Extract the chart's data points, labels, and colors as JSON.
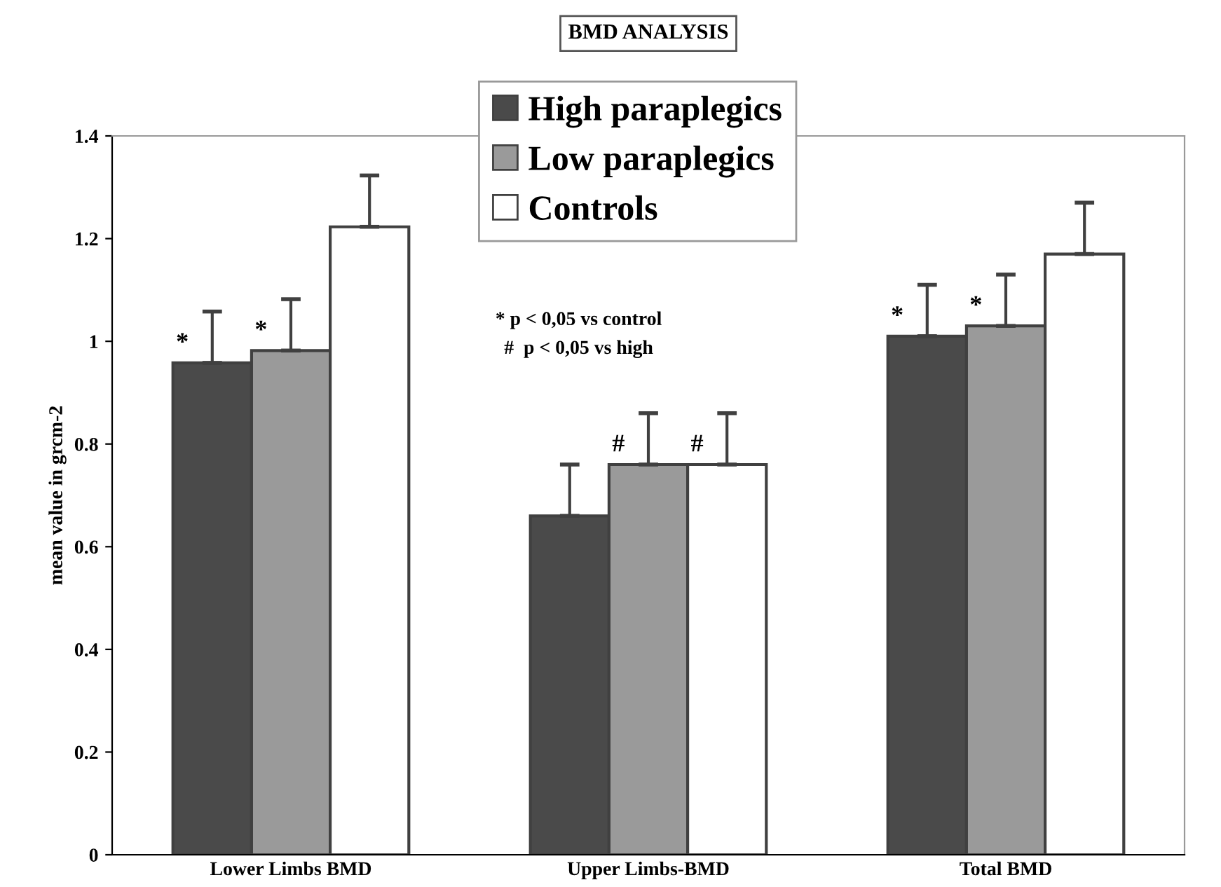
{
  "chart_data": {
    "type": "bar",
    "title": "BMD ANALYSIS",
    "ylabel": "mean value in grcm-2",
    "categories": [
      "Lower Limbs BMD",
      "Upper Limbs-BMD",
      "Total BMD"
    ],
    "series": [
      {
        "name": "High paraplegics",
        "color": "#4a4a4a",
        "values": [
          0.958,
          0.66,
          1.01
        ],
        "errors": [
          [
            0.958,
            1.058
          ],
          [
            0.66,
            0.76
          ],
          [
            1.01,
            1.11
          ]
        ],
        "value_labels": [
          "*",
          null,
          "*"
        ]
      },
      {
        "name": "Low paraplegics",
        "color": "#9a9a9a",
        "values": [
          0.982,
          0.76,
          1.03
        ],
        "errors": [
          [
            0.982,
            1.082
          ],
          [
            0.76,
            0.86
          ],
          [
            1.03,
            1.13
          ]
        ],
        "value_labels": [
          "*",
          "#",
          "*"
        ]
      },
      {
        "name": "Controls",
        "color": "#ffffff",
        "values": [
          1.223,
          0.76,
          1.17
        ],
        "errors": [
          [
            1.223,
            1.323
          ],
          [
            0.76,
            0.86
          ],
          [
            1.17,
            1.27
          ]
        ],
        "value_labels": [
          null,
          "#",
          null
        ]
      }
    ],
    "ylim": [
      0,
      1.4
    ],
    "yticks": [
      0,
      0.2,
      0.4,
      0.6,
      0.8,
      1,
      1.2,
      1.4
    ],
    "grid": false,
    "legend": "top",
    "annotations": [
      "* p < 0,05 vs control",
      "#  p < 0,05 vs high"
    ]
  }
}
